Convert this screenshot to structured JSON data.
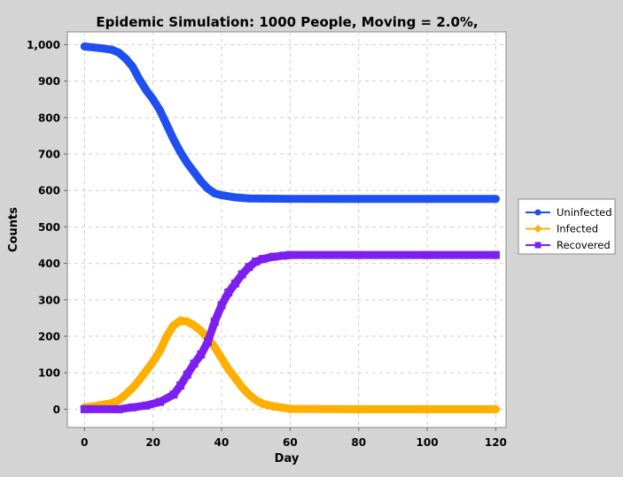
{
  "chart_data": {
    "type": "line",
    "title": "Epidemic Simulation: 1000 People, Moving = 2.0%,",
    "xlabel": "Day",
    "ylabel": "Counts",
    "xlim": [
      -5,
      123
    ],
    "ylim": [
      -50,
      1035
    ],
    "x_ticks": [
      0,
      20,
      40,
      60,
      80,
      100,
      120
    ],
    "y_ticks": [
      0,
      100,
      200,
      300,
      400,
      500,
      600,
      700,
      800,
      900,
      1000
    ],
    "x_tick_labels": [
      "0",
      "20",
      "40",
      "60",
      "80",
      "100",
      "120"
    ],
    "y_tick_labels": [
      "0",
      "100",
      "200",
      "300",
      "400",
      "500",
      "600",
      "700",
      "800",
      "900",
      "1,000"
    ],
    "grid": true,
    "legend_position": "right",
    "series": [
      {
        "name": "Uninfected",
        "color": "#1f4ff0",
        "marker": "circle",
        "points": [
          [
            0,
            995
          ],
          [
            5,
            990
          ],
          [
            8,
            986
          ],
          [
            10,
            978
          ],
          [
            12,
            962
          ],
          [
            14,
            940
          ],
          [
            16,
            905
          ],
          [
            18,
            875
          ],
          [
            20,
            850
          ],
          [
            22,
            820
          ],
          [
            24,
            780
          ],
          [
            26,
            740
          ],
          [
            28,
            705
          ],
          [
            30,
            675
          ],
          [
            32,
            650
          ],
          [
            34,
            625
          ],
          [
            36,
            605
          ],
          [
            38,
            592
          ],
          [
            40,
            587
          ],
          [
            44,
            581
          ],
          [
            48,
            578
          ],
          [
            60,
            577
          ],
          [
            80,
            577
          ],
          [
            100,
            577
          ],
          [
            120,
            577
          ]
        ]
      },
      {
        "name": "Infected",
        "color": "#ffaf00",
        "marker": "diamond",
        "points": [
          [
            0,
            5
          ],
          [
            4,
            10
          ],
          [
            8,
            17
          ],
          [
            10,
            25
          ],
          [
            12,
            40
          ],
          [
            14,
            58
          ],
          [
            16,
            80
          ],
          [
            18,
            105
          ],
          [
            20,
            130
          ],
          [
            22,
            160
          ],
          [
            24,
            200
          ],
          [
            26,
            230
          ],
          [
            28,
            243
          ],
          [
            30,
            240
          ],
          [
            32,
            230
          ],
          [
            34,
            215
          ],
          [
            36,
            195
          ],
          [
            38,
            170
          ],
          [
            40,
            140
          ],
          [
            42,
            110
          ],
          [
            44,
            85
          ],
          [
            46,
            60
          ],
          [
            48,
            40
          ],
          [
            50,
            25
          ],
          [
            52,
            15
          ],
          [
            55,
            8
          ],
          [
            58,
            4
          ],
          [
            60,
            1
          ],
          [
            80,
            0
          ],
          [
            100,
            0
          ],
          [
            120,
            0
          ]
        ]
      },
      {
        "name": "Recovered",
        "color": "#7d1ff0",
        "marker": "square",
        "points": [
          [
            0,
            0
          ],
          [
            10,
            0
          ],
          [
            14,
            5
          ],
          [
            18,
            10
          ],
          [
            22,
            20
          ],
          [
            26,
            40
          ],
          [
            28,
            65
          ],
          [
            30,
            95
          ],
          [
            32,
            125
          ],
          [
            34,
            150
          ],
          [
            36,
            185
          ],
          [
            38,
            240
          ],
          [
            40,
            285
          ],
          [
            42,
            320
          ],
          [
            44,
            345
          ],
          [
            46,
            370
          ],
          [
            48,
            390
          ],
          [
            50,
            405
          ],
          [
            52,
            412
          ],
          [
            55,
            418
          ],
          [
            58,
            421
          ],
          [
            60,
            423
          ],
          [
            80,
            423
          ],
          [
            100,
            423
          ],
          [
            120,
            423
          ]
        ]
      }
    ]
  }
}
